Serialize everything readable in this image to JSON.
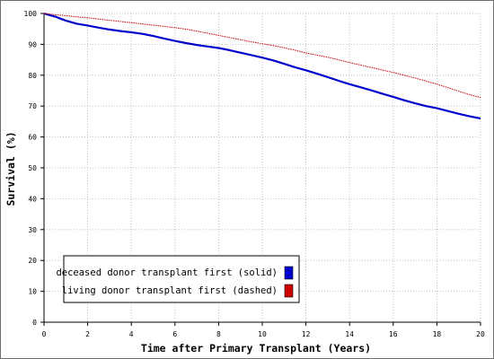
{
  "chart_data": {
    "type": "line",
    "xlabel": "Time after Primary Transplant (Years)",
    "ylabel": "Survival (%)",
    "xlim": [
      0,
      20
    ],
    "ylim": [
      0,
      100
    ],
    "xticks": [
      0,
      2,
      4,
      6,
      8,
      10,
      12,
      14,
      16,
      18,
      20
    ],
    "yticks": [
      0,
      10,
      20,
      30,
      40,
      50,
      60,
      70,
      80,
      90,
      100
    ],
    "grid": true,
    "legend_position": "bottom-left",
    "series": [
      {
        "name": "deceased donor transplant first (solid)",
        "color": "#0000cc",
        "style": "solid",
        "x": [
          0,
          0.2,
          0.5,
          0.8,
          1,
          1.5,
          2,
          2.5,
          3,
          3.5,
          4,
          4.5,
          5,
          5.5,
          6,
          6.5,
          7,
          7.5,
          8,
          8.5,
          9,
          9.5,
          10,
          10.5,
          11,
          11.5,
          12,
          12.5,
          13,
          13.5,
          14,
          14.5,
          15,
          15.5,
          16,
          16.5,
          17,
          17.5,
          18,
          18.5,
          19,
          19.5,
          20
        ],
        "y": [
          100,
          99.6,
          99,
          98.2,
          97.7,
          96.7,
          96.1,
          95.4,
          94.8,
          94.3,
          93.9,
          93.4,
          92.7,
          91.9,
          91.1,
          90.4,
          89.8,
          89.3,
          88.8,
          88.1,
          87.3,
          86.5,
          85.7,
          84.8,
          83.7,
          82.6,
          81.6,
          80.5,
          79.4,
          78.2,
          77.1,
          76.1,
          75.1,
          74.0,
          73.0,
          71.9,
          70.9,
          70.0,
          69.3,
          68.4,
          67.5,
          66.7,
          66.0
        ]
      },
      {
        "name": "living donor transplant first (dashed)",
        "color": "#cc0000",
        "style": "dashed",
        "x": [
          0,
          0.5,
          1,
          1.5,
          2,
          2.5,
          3,
          3.5,
          4,
          4.5,
          5,
          5.5,
          6,
          6.5,
          7,
          7.5,
          8,
          8.5,
          9,
          9.5,
          10,
          10.5,
          11,
          11.5,
          12,
          12.5,
          13,
          13.5,
          14,
          14.5,
          15,
          15.5,
          16,
          16.5,
          17,
          17.5,
          18,
          18.5,
          19,
          19.5,
          20
        ],
        "y": [
          100,
          99.6,
          99.3,
          98.9,
          98.6,
          98.2,
          97.8,
          97.4,
          97.0,
          96.6,
          96.2,
          95.8,
          95.4,
          94.9,
          94.3,
          93.6,
          92.9,
          92.2,
          91.5,
          90.8,
          90.2,
          89.6,
          88.9,
          88.1,
          87.2,
          86.5,
          85.8,
          85.0,
          84.1,
          83.3,
          82.5,
          81.7,
          80.9,
          80.0,
          79.1,
          78.1,
          77.1,
          76.0,
          74.8,
          73.7,
          72.8
        ]
      }
    ]
  }
}
